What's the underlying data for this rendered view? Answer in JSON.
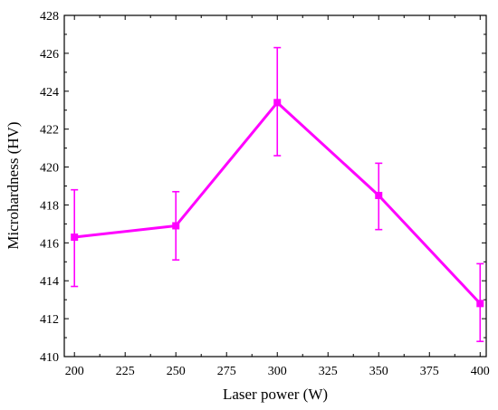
{
  "chart_data": {
    "type": "line",
    "title": "",
    "xlabel": "Laser power (W)",
    "ylabel": "Microhardness (HV)",
    "xlim": [
      195,
      403
    ],
    "ylim": [
      410,
      428
    ],
    "x_ticks": [
      200,
      225,
      250,
      275,
      300,
      325,
      350,
      375,
      400
    ],
    "y_ticks": [
      410,
      412,
      414,
      416,
      418,
      420,
      422,
      424,
      426,
      428
    ],
    "grid": false,
    "legend": "none",
    "color": "#ff00ff",
    "series": [
      {
        "x": [
          200,
          250,
          300,
          350,
          400
        ],
        "y": [
          416.3,
          416.9,
          423.4,
          418.5,
          412.8
        ],
        "error_low": [
          413.7,
          415.1,
          420.6,
          416.7,
          410.8
        ],
        "error_high": [
          418.8,
          418.7,
          426.3,
          420.2,
          414.9
        ],
        "marker": "square"
      }
    ]
  }
}
